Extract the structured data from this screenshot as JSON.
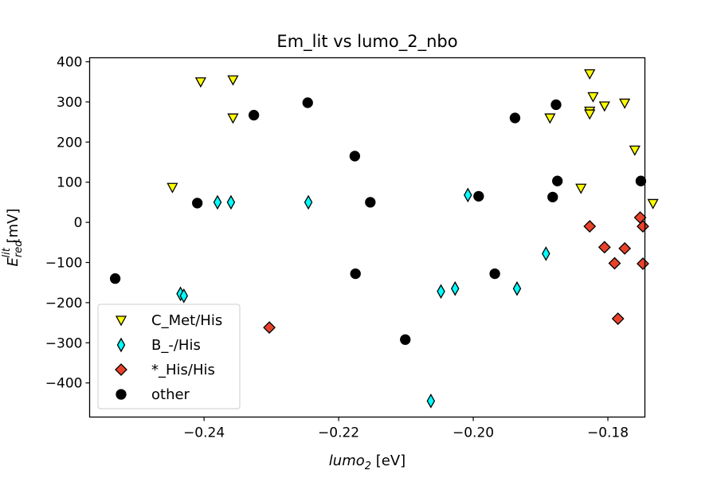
{
  "chart_data": {
    "type": "scatter",
    "title": "Em_lit vs lumo_2_nbo",
    "xlabel": {
      "main": "lumo",
      "sub": "2",
      "unit": " [eV]"
    },
    "ylabel": {
      "main": "E",
      "sub": "red",
      "sup": "lit",
      "unit": " [mV]"
    },
    "xlim": [
      -0.257,
      -0.1745
    ],
    "ylim": [
      -485,
      410
    ],
    "xticks": [
      -0.24,
      -0.22,
      -0.2,
      -0.18
    ],
    "xtick_labels": [
      "−0.24",
      "−0.22",
      "−0.20",
      "−0.18"
    ],
    "yticks": [
      400,
      300,
      200,
      100,
      0,
      -100,
      -200,
      -300,
      -400
    ],
    "ytick_labels": [
      "400",
      "300",
      "200",
      "100",
      "0",
      "−100",
      "−200",
      "−300",
      "−400"
    ],
    "grid": false,
    "legend_position": "lower-left",
    "series": [
      {
        "name": "C_Met/His",
        "marker": "triangle-down",
        "color": "#ffff00",
        "points": [
          [
            -0.2405,
            350
          ],
          [
            -0.2357,
            355
          ],
          [
            -0.2357,
            260
          ],
          [
            -0.2447,
            87
          ],
          [
            -0.1886,
            260
          ],
          [
            -0.184,
            85
          ],
          [
            -0.1827,
            370
          ],
          [
            -0.1822,
            313
          ],
          [
            -0.1827,
            277
          ],
          [
            -0.1827,
            270
          ],
          [
            -0.1805,
            290
          ],
          [
            -0.1775,
            297
          ],
          [
            -0.176,
            180
          ],
          [
            -0.1733,
            47
          ]
        ]
      },
      {
        "name": "B_-/His",
        "marker": "thin-diamond",
        "color": "#00ffff",
        "points": [
          [
            -0.238,
            50
          ],
          [
            -0.236,
            50
          ],
          [
            -0.2245,
            50
          ],
          [
            -0.2008,
            68
          ],
          [
            -0.2435,
            -178
          ],
          [
            -0.243,
            -183
          ],
          [
            -0.2048,
            -172
          ],
          [
            -0.2027,
            -165
          ],
          [
            -0.1935,
            -165
          ],
          [
            -0.1892,
            -78
          ],
          [
            -0.2063,
            -445
          ]
        ]
      },
      {
        "name": "*_His/His",
        "marker": "diamond",
        "color": "#e8432a",
        "points": [
          [
            -0.2303,
            -262
          ],
          [
            -0.1827,
            -10
          ],
          [
            -0.1805,
            -62
          ],
          [
            -0.179,
            -102
          ],
          [
            -0.1775,
            -65
          ],
          [
            -0.1785,
            -240
          ],
          [
            -0.1752,
            12
          ],
          [
            -0.1748,
            -10
          ],
          [
            -0.1748,
            -103
          ]
        ]
      },
      {
        "name": "other",
        "marker": "circle",
        "color": "#000000",
        "points": [
          [
            -0.2532,
            -140
          ],
          [
            -0.241,
            48
          ],
          [
            -0.2326,
            267
          ],
          [
            -0.2246,
            298
          ],
          [
            -0.2176,
            165
          ],
          [
            -0.2153,
            50
          ],
          [
            -0.2175,
            -128
          ],
          [
            -0.2101,
            -292
          ],
          [
            -0.1992,
            65
          ],
          [
            -0.1968,
            -128
          ],
          [
            -0.1938,
            260
          ],
          [
            -0.1877,
            293
          ],
          [
            -0.1875,
            103
          ],
          [
            -0.1882,
            63
          ],
          [
            -0.1751,
            103
          ]
        ]
      }
    ]
  }
}
